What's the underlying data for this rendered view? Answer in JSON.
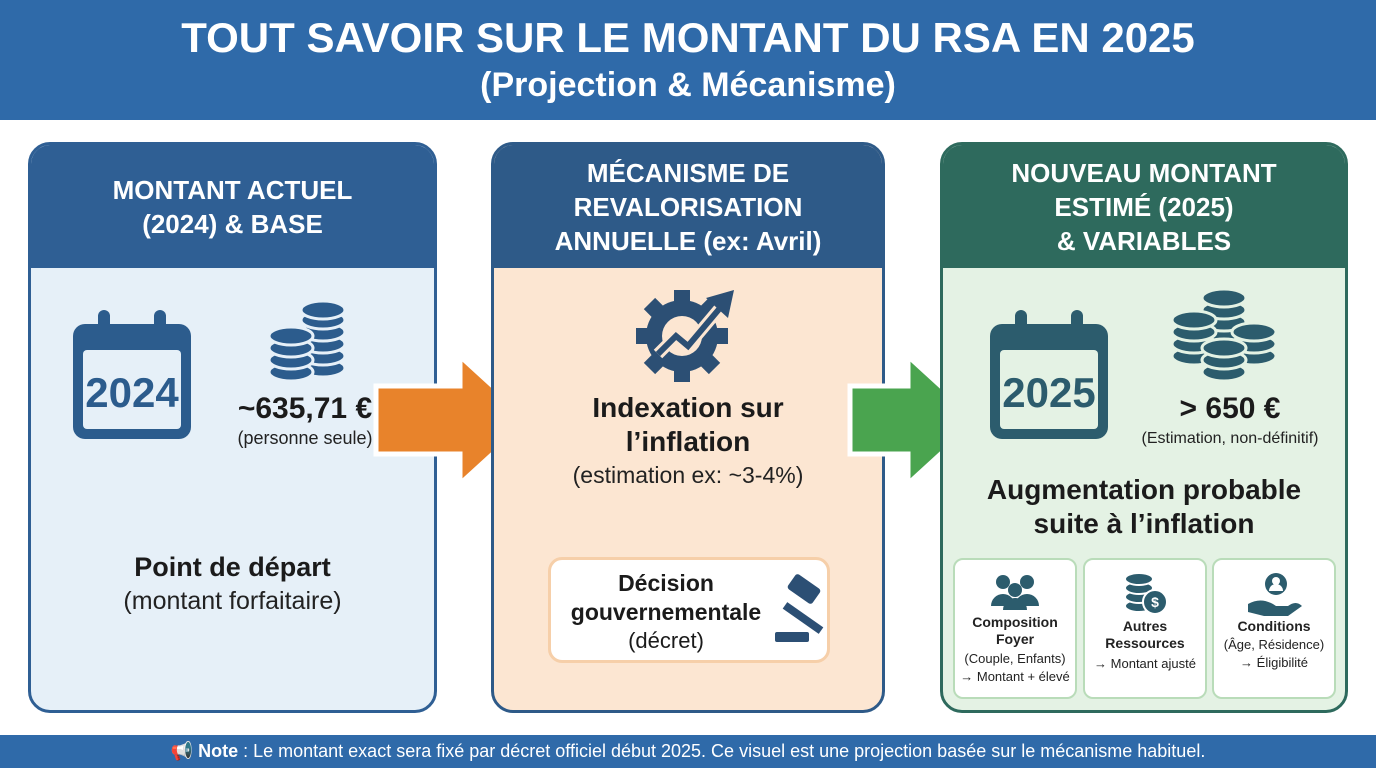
{
  "header": {
    "title": "TOUT SAVOIR SUR LE MONTANT DU RSA EN 2025",
    "subtitle": "(Projection & Mécanisme)"
  },
  "panels": [
    {
      "title": [
        "MONTANT ACTUEL",
        "(2024) & BASE"
      ],
      "calendar_year": "2024",
      "amount": "~635,71 €",
      "amount_note": "(personne seule)",
      "label": "Point de départ",
      "label_note": "(montant forfaitaire)"
    },
    {
      "title": [
        "MÉCANISME DE",
        "REVALORISATION",
        "ANNUELLE (ex: Avril)"
      ],
      "headline": [
        "Indexation sur",
        "l’inflation"
      ],
      "note": "(estimation ex: ~3-4%)",
      "decision": [
        "Décision",
        "gouvernementale",
        "(décret)"
      ]
    },
    {
      "title": [
        "NOUVEAU MONTANT",
        "ESTIMÉ (2025)",
        "& VARIABLES"
      ],
      "calendar_year": "2025",
      "amount": "> 650 €",
      "amount_note": "(Estimation, non-définitif)",
      "headline": [
        "Augmentation probable",
        "suite à l’inflation"
      ],
      "cards": [
        {
          "title": [
            "Composition",
            "Foyer"
          ],
          "lines": [
            "(Couple, Enfants)",
            "→ Montant + élevé"
          ]
        },
        {
          "title": [
            "Autres",
            "Ressources"
          ],
          "lines": [
            "→ Montant ajusté"
          ]
        },
        {
          "title": [
            "Conditions"
          ],
          "lines": [
            "(Âge, Résidence)",
            "→ Éligibilité"
          ]
        }
      ]
    }
  ],
  "footer": {
    "label": "Note",
    "text": ": Le montant exact sera fixé par décret officiel début 2025. Ce visuel est une projection basée sur le mécanisme habituel."
  }
}
